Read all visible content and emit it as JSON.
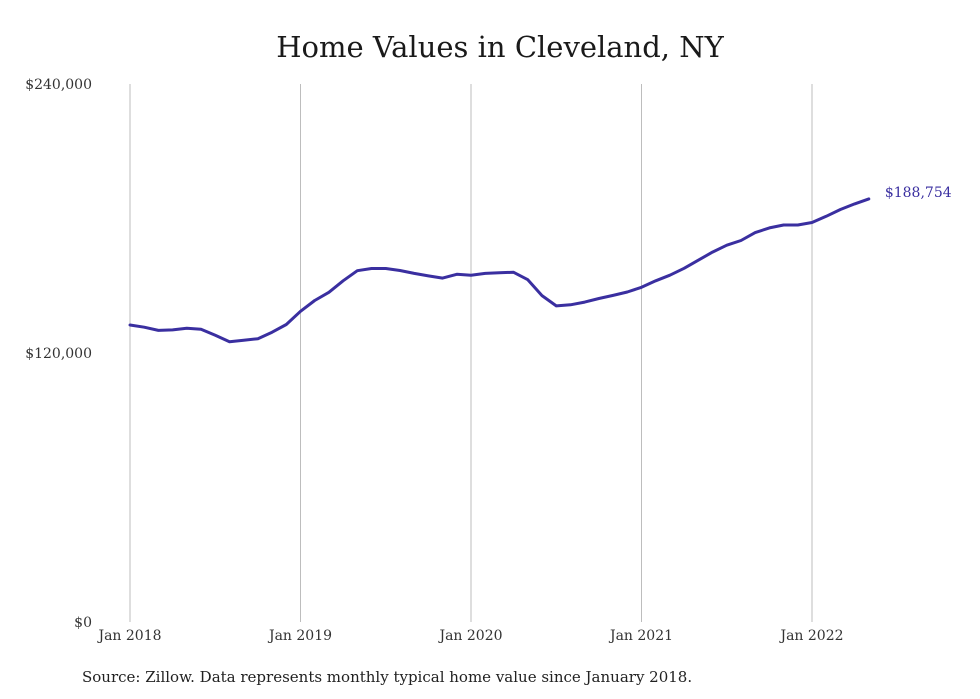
{
  "chart_data": {
    "type": "line",
    "title": "Home Values in Cleveland, NY",
    "source": "Source: Zillow. Data represents monthly typical home value since January 2018.",
    "xlabel": "",
    "ylabel": "",
    "ylim": [
      0,
      240000
    ],
    "y_ticks": [
      {
        "value": 240000,
        "label": "$240,000"
      },
      {
        "value": 120000,
        "label": "$120,000"
      },
      {
        "value": 0,
        "label": "$0"
      }
    ],
    "x_ticks": [
      {
        "value": "2018-01",
        "label": "Jan 2018"
      },
      {
        "value": "2019-01",
        "label": "Jan 2019"
      },
      {
        "value": "2020-01",
        "label": "Jan 2020"
      },
      {
        "value": "2021-01",
        "label": "Jan 2021"
      },
      {
        "value": "2022-01",
        "label": "Jan 2022"
      }
    ],
    "grid": "vertical",
    "line_color": "#3a2fa0",
    "end_label": "$188,754",
    "series": [
      {
        "x": [
          "2018-01",
          "2018-02",
          "2018-03",
          "2018-04",
          "2018-05",
          "2018-06",
          "2018-07",
          "2018-08",
          "2018-09",
          "2018-10",
          "2018-11",
          "2018-12",
          "2019-01",
          "2019-02",
          "2019-03",
          "2019-04",
          "2019-05",
          "2019-06",
          "2019-07",
          "2019-08",
          "2019-09",
          "2019-10",
          "2019-11",
          "2019-12",
          "2020-01",
          "2020-02",
          "2020-03",
          "2020-04",
          "2020-05",
          "2020-06",
          "2020-07",
          "2020-08",
          "2020-09",
          "2020-10",
          "2020-11",
          "2020-12",
          "2021-01",
          "2021-02",
          "2021-03",
          "2021-04",
          "2021-05",
          "2021-06",
          "2021-07",
          "2021-08",
          "2021-09",
          "2021-10",
          "2021-11",
          "2021-12",
          "2022-01",
          "2022-02",
          "2022-03",
          "2022-04",
          "2022-05"
        ],
        "values": [
          132500,
          131500,
          130100,
          130300,
          131000,
          130600,
          127900,
          125000,
          125700,
          126400,
          129300,
          132700,
          138600,
          143400,
          147100,
          152200,
          156700,
          157700,
          157700,
          156800,
          155500,
          154400,
          153400,
          155100,
          154700,
          155500,
          155800,
          156000,
          152700,
          145600,
          141000,
          141500,
          142700,
          144300,
          145700,
          147200,
          149300,
          152200,
          154700,
          157800,
          161400,
          165000,
          168100,
          170200,
          173700,
          175800,
          177100,
          177100,
          178200,
          181000,
          184000,
          186500,
          188754
        ]
      }
    ]
  }
}
